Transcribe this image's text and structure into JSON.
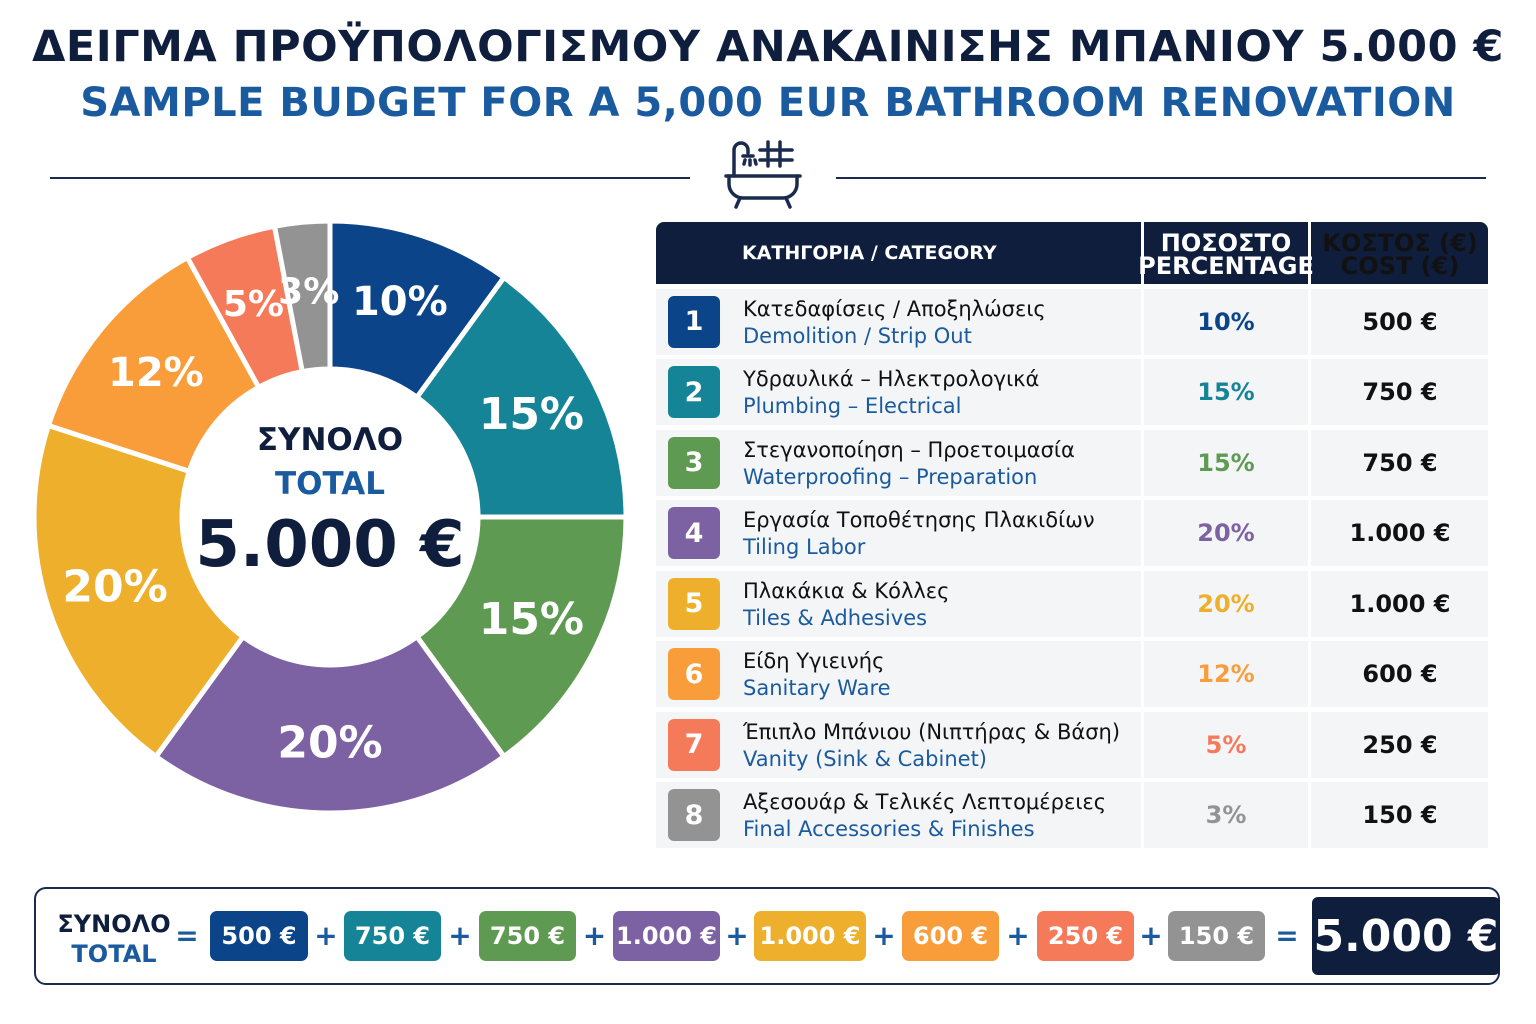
{
  "title_gr": "ΔΕΙΓΜΑ ΠΡΟΫΠΟΛΟΓΙΣΜΟΥ ΑΝΑΚΑΙΝΙΣΗΣ ΜΠΑΝΙΟΥ 5.000 €",
  "title_en": "SAMPLE BUDGET FOR A 5,000 EUR BATHROOM RENOVATION",
  "icon": "bathtub-icon",
  "donut": {
    "center_gr": "ΣΥΝΟΛΟ",
    "center_en": "TOTAL",
    "center_value": "5.000 €"
  },
  "table": {
    "header_category": "ΚΑΤΗΓΟΡΙΑ / CATEGORY",
    "header_percentage_gr": "ΠΟΣΟΣΤΟ",
    "header_percentage_en": "PERCENTAGE",
    "header_cost_gr": "ΚΟΣΤΟΣ (€)",
    "header_cost_en": "COST (€)",
    "rows": [
      {
        "num": "1",
        "gr": "Κατεδαφίσεις / Αποξηλώσεις",
        "en": "Demolition / Strip Out",
        "pct": "10%",
        "cost": "500 €"
      },
      {
        "num": "2",
        "gr": "Υδραυλικά – Ηλεκτρολογικά",
        "en": "Plumbing – Electrical",
        "pct": "15%",
        "cost": "750 €"
      },
      {
        "num": "3",
        "gr": "Στεγανοποίηση – Προετοιμασία",
        "en": "Waterproofing – Preparation",
        "pct": "15%",
        "cost": "750 €"
      },
      {
        "num": "4",
        "gr": "Εργασία Τοποθέτησης Πλακιδίων",
        "en": "Tiling Labor",
        "pct": "20%",
        "cost": "1.000 €"
      },
      {
        "num": "5",
        "gr": "Πλακάκια & Κόλλες",
        "en": "Tiles & Adhesives",
        "pct": "20%",
        "cost": "1.000 €"
      },
      {
        "num": "6",
        "gr": "Είδη Υγιεινής",
        "en": "Sanitary Ware",
        "pct": "12%",
        "cost": "600 €"
      },
      {
        "num": "7",
        "gr": "Έπιπλο Μπάνιου (Νιπτήρας & Βάση)",
        "en": "Vanity (Sink & Cabinet)",
        "pct": "5%",
        "cost": "250 €"
      },
      {
        "num": "8",
        "gr": "Αξεσουάρ & Τελικές Λεπτομέρειες",
        "en": "Final Accessories & Finishes",
        "pct": "3%",
        "cost": "150 €"
      }
    ]
  },
  "summary": {
    "label_gr": "ΣΥΝΟΛΟ",
    "label_en": "TOTAL",
    "equals": "=",
    "plus": "+",
    "items": [
      "500 €",
      "750 €",
      "750 €",
      "1.000 €",
      "1.000 €",
      "600 €",
      "250 €",
      "150 €"
    ],
    "total": "5.000 €"
  },
  "colors": {
    "navy": "#0f1e3d",
    "blue_text": "#1a5a9e",
    "slices": [
      "#0b4489",
      "#168497",
      "#5f9a52",
      "#7d62a3",
      "#eeb02c",
      "#f89d3a",
      "#f57a5a",
      "#939393"
    ],
    "pct_text": [
      "#0b4489",
      "#168497",
      "#5f9a52",
      "#7d62a3",
      "#eeb02c",
      "#f89d3a",
      "#f57a5a",
      "#939393"
    ]
  },
  "chart_data": {
    "type": "pie",
    "categories": [
      "Demolition / Strip Out",
      "Plumbing – Electrical",
      "Waterproofing – Preparation",
      "Tiling Labor",
      "Tiles & Adhesives",
      "Sanitary Ware",
      "Vanity (Sink & Cabinet)",
      "Final Accessories & Finishes"
    ],
    "values": [
      10,
      15,
      15,
      20,
      20,
      12,
      5,
      3
    ],
    "labels": [
      "10%",
      "15%",
      "15%",
      "20%",
      "20%",
      "12%",
      "5%",
      "3%"
    ],
    "costs": [
      500,
      750,
      750,
      1000,
      1000,
      600,
      250,
      150
    ],
    "total": 5000
  }
}
